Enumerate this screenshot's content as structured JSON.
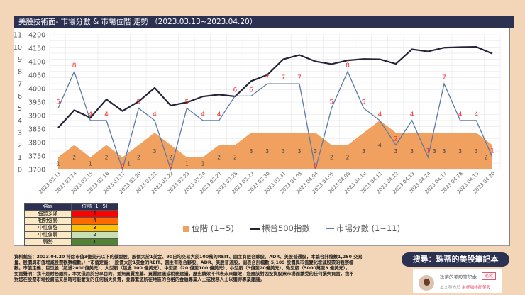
{
  "title": "美股技術面- 市場分數 & 市場位階 走勢 （2023.03.13~2023.04.20）",
  "chart_data": {
    "type": "line+area",
    "categories": [
      "2023.03.13",
      "2023.03.14",
      "2023.03.15",
      "2023.03.16",
      "2023.03.17",
      "2023.03.20",
      "2023.03.21",
      "2023.03.22",
      "2023.03.23",
      "2023.03.24",
      "2023.03.27",
      "2023.03.28",
      "2023.03.29",
      "2023.03.30",
      "2023.03.31",
      "2023.04.03",
      "2023.04.04",
      "2023.04.05",
      "2023.04.06",
      "2023.04.10",
      "2023.04.11",
      "2023.04.12",
      "2023.04.13",
      "2023.04.14",
      "2023.04.17",
      "2023.04.18",
      "2023.04.19",
      "2023.04.20"
    ],
    "left_axis": {
      "ylim": [
        0,
        11
      ],
      "ticks": [
        "0",
        "1",
        "2",
        "3",
        "4",
        "5",
        "6",
        "7",
        "8",
        "9",
        "10",
        "11"
      ]
    },
    "right_axis": {
      "ylim": [
        3700,
        4200
      ],
      "ticks": [
        "3700",
        "3750",
        "3800",
        "3850",
        "3900",
        "3950",
        "4000",
        "4050",
        "4100",
        "4150",
        "4200"
      ]
    },
    "grid": true,
    "legend_placement": "bottom",
    "series": [
      {
        "name": "位階 (1~5)",
        "type": "area",
        "axis": "left",
        "color": "#f0a05f",
        "values": [
          1,
          2,
          1,
          2,
          1,
          2,
          3,
          2,
          1,
          1,
          2,
          2,
          3,
          3,
          3,
          3,
          3,
          2,
          2,
          3,
          4,
          3,
          3,
          3,
          3,
          3,
          3,
          2
        ]
      },
      {
        "name": "標普500指數",
        "type": "line",
        "axis": "right",
        "color": "#23233a",
        "values": [
          3855,
          3920,
          3892,
          3960,
          3917,
          3952,
          4003,
          3937,
          3949,
          3971,
          3978,
          3971,
          4028,
          4051,
          4109,
          4125,
          4101,
          4091,
          4105,
          4110,
          4109,
          4092,
          4146,
          4138,
          4152,
          4154,
          4155,
          4130
        ]
      },
      {
        "name": "市場分數 (1~11)",
        "type": "line",
        "axis": "left",
        "color": "#5b7aa8",
        "values": [
          5,
          8,
          4,
          4,
          0,
          5,
          4,
          0,
          5,
          4,
          4,
          6,
          6,
          7,
          7,
          7,
          0,
          5,
          8,
          5,
          4,
          2,
          4,
          1,
          7,
          4,
          4,
          1
        ]
      }
    ]
  },
  "table": {
    "headers": [
      "強弱",
      "位階 (1~5)"
    ],
    "rows": [
      {
        "label": "強勢多頭",
        "value": "5",
        "color": "#ff0000"
      },
      {
        "label": "相對強勢",
        "value": "4",
        "color": "#ff6a00"
      },
      {
        "label": "中性偏強",
        "value": "3",
        "color": "#ffc000"
      },
      {
        "label": "中性偏弱",
        "value": "2",
        "color": "#c6e0b4"
      },
      {
        "label": "弱勢",
        "value": "1",
        "color": "#548235"
      }
    ]
  },
  "footer": [
    "資料截至：2023.04.20 排除市值3億美元以下的微型股、股價大於1美金、90日均交易大於100萬的REIT、園主有限合夥股、ADR、美股普通股，本篇合計檔數1,250 交易",
    "量、股價與市值增減股票觀察檔數。）*市值定義：（股價大於1美金的REIT、園主有限合夥股、ADR、美股普通股，圖表合計檔數 5,109 股價與市值變化增減股票的觀察檔",
    "數。市值定義：巨型股（超過2000億美元）、大型股（超過 100 億美元）、中型股（20 億至100 億美元）、小型股（3億至20億美元）、微型股（5000萬至3 億美元）。",
    "免責聲明：我不是財務顧問，本文僅用於分享目的，並無買賣推薦、買賣建議或稅務建議，歷史績效不代表未來績效，您應該對因投資股票市場而蒙受的任何損失負責，我不",
    "對您在股票市場投資或交易時可能蒙受的任何損失負責，並聯繫您所在地區的合格的金融專業人士或稅務人士以獲得專業建議。"
  ],
  "search_pill": "搜尋：珠蒂的美股筆記本",
  "card": {
    "name": "珠蒂的美股筆記本",
    "follow": "追蹤",
    "published_prefix": "本文發佈於",
    "published_link": "來杯咖啡配美股"
  }
}
